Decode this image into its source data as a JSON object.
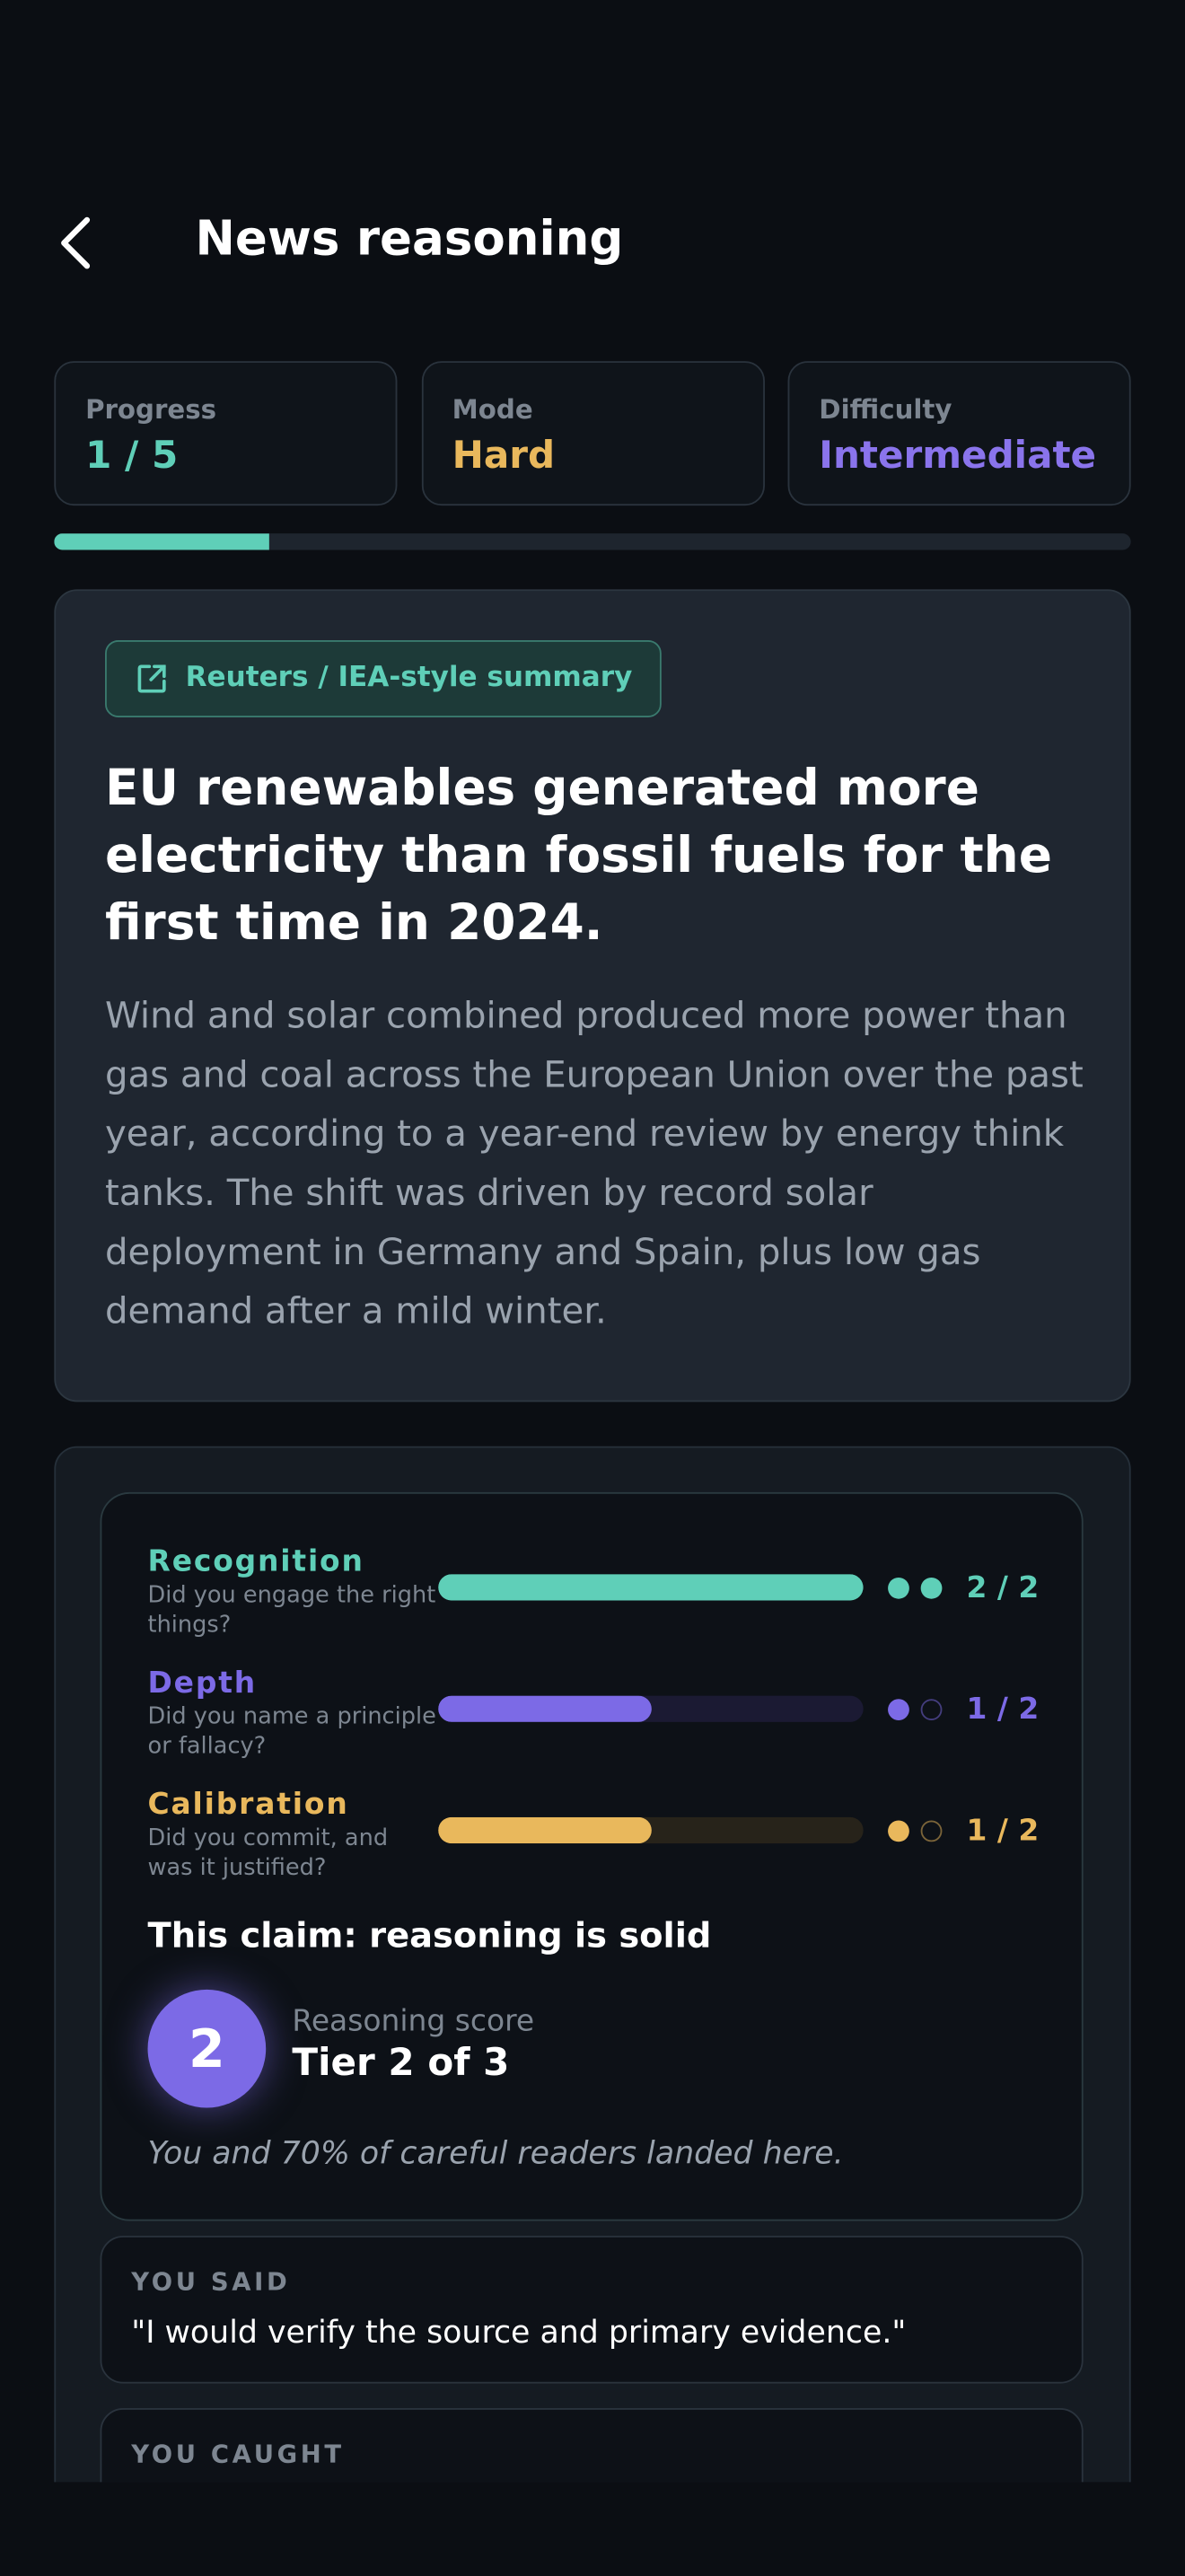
{
  "header": {
    "title": "News reasoning"
  },
  "stats": [
    {
      "label": "Progress",
      "value": "1 / 5",
      "color": "#5fcfb8"
    },
    {
      "label": "Mode",
      "value": "Hard",
      "color": "#e9b85c"
    },
    {
      "label": "Difficulty",
      "value": "Intermediate",
      "color": "#8a74ec"
    }
  ],
  "progress": {
    "current": 1,
    "total": 5,
    "color": "#5fcfb8"
  },
  "article": {
    "source": "Reuters / IEA-style summary",
    "headline": "EU renewables generated more electricity than fossil fuels for the first time in 2024.",
    "body": "Wind and solar combined produced more power than gas and coal across the European Union over the past year, according to a year-end review by energy think tanks. The shift was driven by record solar deployment in Germany and Spain, plus low gas demand after a mild winter."
  },
  "criteria": [
    {
      "name": "Recognition",
      "description": "Did you engage the right things?",
      "score": 2,
      "max": 2,
      "score_label": "2 / 2",
      "color": "#5fcfb8",
      "track": "#14302d"
    },
    {
      "name": "Depth",
      "description": "Did you name a principle or fallacy?",
      "score": 1,
      "max": 2,
      "score_label": "1 / 2",
      "color": "#7c6ae6",
      "track": "#1b1a33"
    },
    {
      "name": "Calibration",
      "description": "Did you commit, and was it justified?",
      "score": 1,
      "max": 2,
      "score_label": "1 / 2",
      "color": "#e9b85c",
      "track": "#27231a"
    }
  ],
  "verdict": {
    "title": "This claim: reasoning is solid",
    "tier": "2",
    "score_label": "Reasoning score",
    "tier_label": "Tier 2 of 3",
    "note": "You and 70% of careful readers landed here."
  },
  "you_said": {
    "label": "YOU SAID",
    "text": "\"I would verify the source and primary evidence.\""
  },
  "you_caught": {
    "label": "YOU CAUGHT"
  }
}
